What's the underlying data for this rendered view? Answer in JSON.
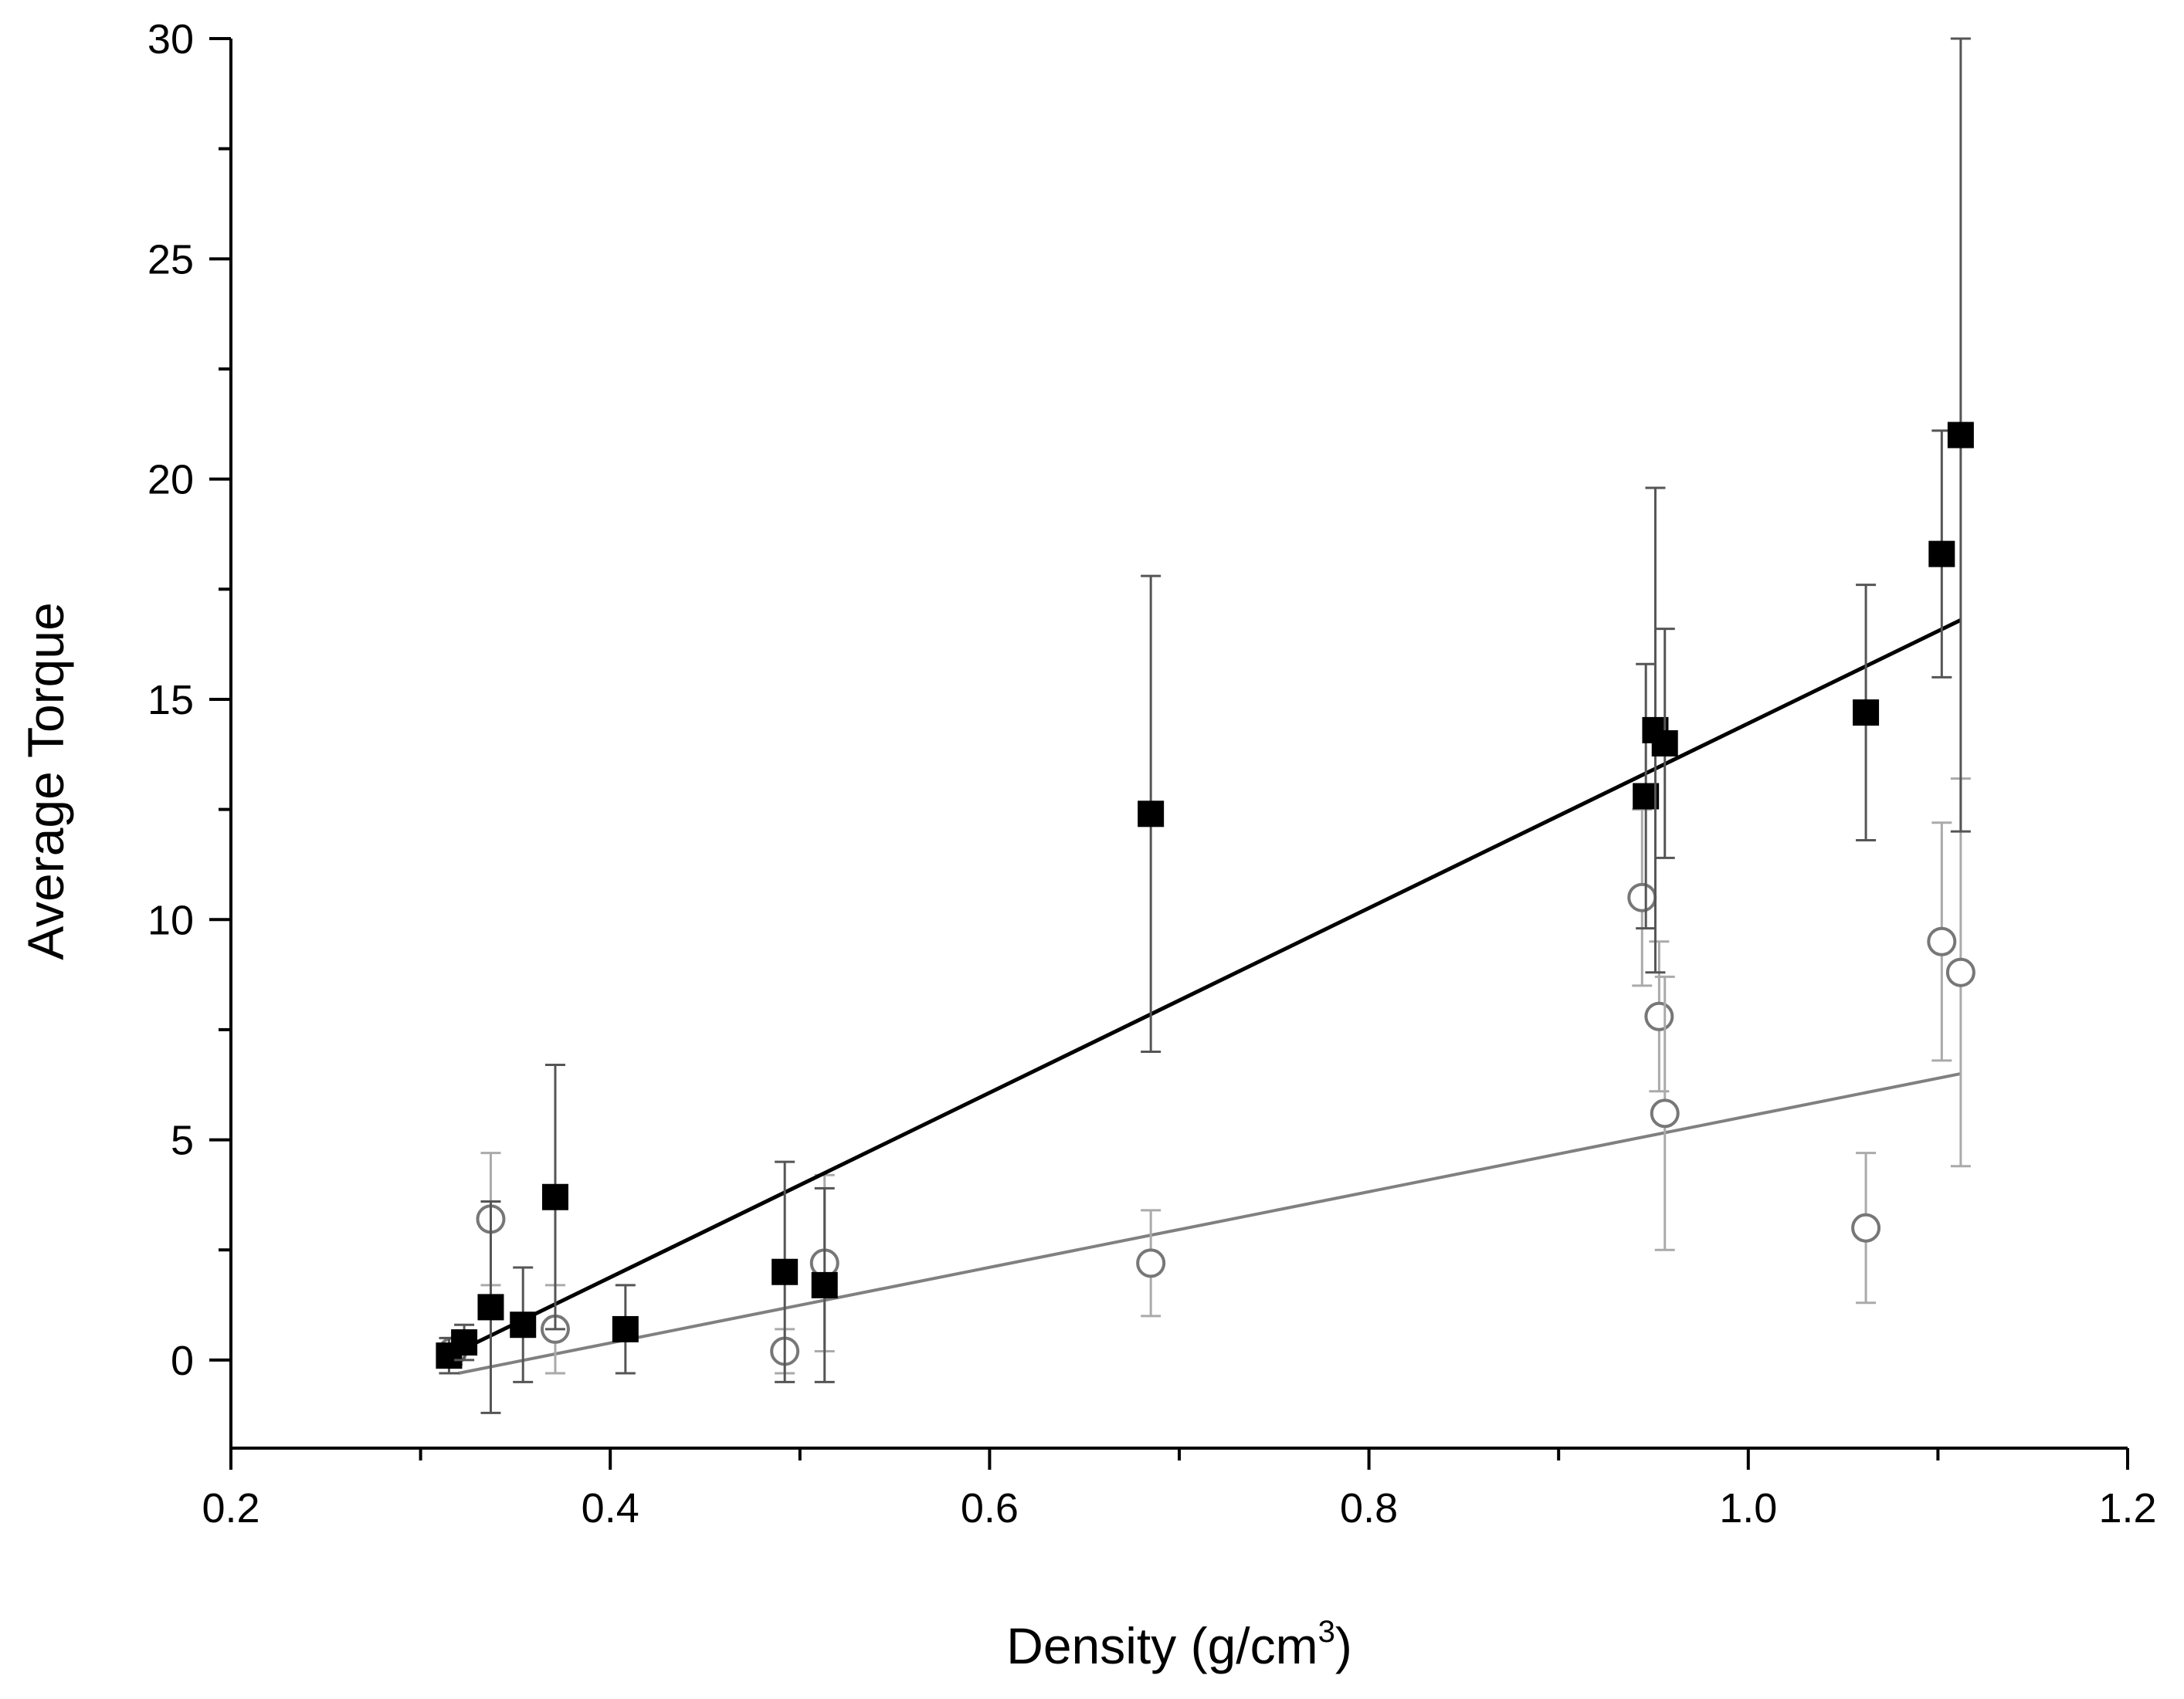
{
  "chart_data": {
    "type": "scatter",
    "title": "",
    "xlabel": "Density (g/cm",
    "xlabel_sup": "3",
    "xlabel_close": ")",
    "ylabel": "Average Torque",
    "xlim": [
      0.2,
      1.2
    ],
    "ylim": [
      -2,
      30
    ],
    "x_ticks": [
      0.2,
      0.4,
      0.6,
      0.8,
      1.0,
      1.2
    ],
    "x_tick_labels": [
      "0.2",
      "0.4",
      "0.6",
      "0.8",
      "1.0",
      "1.2"
    ],
    "y_ticks": [
      0,
      5,
      10,
      15,
      20,
      25,
      30
    ],
    "y_tick_labels": [
      "0",
      "5",
      "10",
      "15",
      "20",
      "25",
      "30"
    ],
    "grid": false,
    "series": [
      {
        "name": "filled squares",
        "marker": "square-filled",
        "color": "#000000",
        "errorbar_color": "#555555",
        "points": [
          {
            "x": 0.315,
            "y": 0.1,
            "err": 0.4
          },
          {
            "x": 0.323,
            "y": 0.4,
            "err": 0.4
          },
          {
            "x": 0.337,
            "y": 1.2,
            "err": 2.4
          },
          {
            "x": 0.354,
            "y": 0.8,
            "err": 1.3
          },
          {
            "x": 0.371,
            "y": 3.7,
            "err": 3.0
          },
          {
            "x": 0.408,
            "y": 0.7,
            "err": 1.0
          },
          {
            "x": 0.492,
            "y": 2.0,
            "err": 2.5
          },
          {
            "x": 0.513,
            "y": 1.7,
            "err": 2.2
          },
          {
            "x": 0.685,
            "y": 12.4,
            "err": 5.4
          },
          {
            "x": 0.946,
            "y": 12.8,
            "err": 3.0
          },
          {
            "x": 0.951,
            "y": 14.3,
            "err": 5.5
          },
          {
            "x": 0.956,
            "y": 14.0,
            "err": 2.6
          },
          {
            "x": 1.062,
            "y": 14.7,
            "err": 2.9
          },
          {
            "x": 1.102,
            "y": 18.3,
            "err": 2.8
          },
          {
            "x": 1.112,
            "y": 21.0,
            "err": 9.0
          }
        ],
        "fit_line": {
          "x": [
            0.32,
            1.112
          ],
          "y": [
            0.2,
            16.8
          ]
        }
      },
      {
        "name": "open circles",
        "marker": "circle-open",
        "color": "#777777",
        "errorbar_color": "#aaaaaa",
        "points": [
          {
            "x": 0.317,
            "y": 0.2,
            "err": 0.3
          },
          {
            "x": 0.337,
            "y": 3.2,
            "err": 1.5
          },
          {
            "x": 0.371,
            "y": 0.7,
            "err": 1.0
          },
          {
            "x": 0.492,
            "y": 0.2,
            "err": 0.5
          },
          {
            "x": 0.513,
            "y": 2.2,
            "err": 2.0
          },
          {
            "x": 0.685,
            "y": 2.2,
            "err": 1.2
          },
          {
            "x": 0.944,
            "y": 10.5,
            "err": 2.0
          },
          {
            "x": 0.953,
            "y": 7.8,
            "err": 1.7
          },
          {
            "x": 0.956,
            "y": 5.6,
            "err": 3.1
          },
          {
            "x": 1.062,
            "y": 3.0,
            "err": 1.7
          },
          {
            "x": 1.102,
            "y": 9.5,
            "err": 2.7
          },
          {
            "x": 1.112,
            "y": 8.8,
            "err": 4.4
          }
        ],
        "fit_line": {
          "x": [
            0.32,
            1.112
          ],
          "y": [
            -0.3,
            6.5
          ]
        }
      }
    ]
  }
}
